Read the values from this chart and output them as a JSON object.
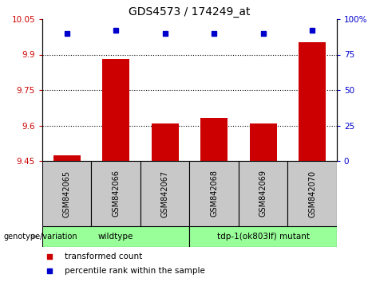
{
  "title": "GDS4573 / 174249_at",
  "samples": [
    "GSM842065",
    "GSM842066",
    "GSM842067",
    "GSM842068",
    "GSM842069",
    "GSM842070"
  ],
  "bar_values": [
    9.473,
    9.883,
    9.608,
    9.633,
    9.608,
    9.953
  ],
  "percentile_values": [
    90,
    92,
    90,
    90,
    90,
    92
  ],
  "ylim_left": [
    9.45,
    10.05
  ],
  "ylim_right": [
    0,
    100
  ],
  "yticks_left": [
    9.45,
    9.6,
    9.75,
    9.9,
    10.05
  ],
  "yticks_right": [
    0,
    25,
    50,
    75,
    100
  ],
  "ytick_labels_left": [
    "9.45",
    "9.6",
    "9.75",
    "9.9",
    "10.05"
  ],
  "ytick_labels_right": [
    "0",
    "25",
    "50",
    "75",
    "100%"
  ],
  "hline_values": [
    9.6,
    9.75,
    9.9
  ],
  "bar_color": "#cc0000",
  "dot_color": "#0000cc",
  "bar_width": 0.55,
  "group_labels": [
    "wildtype",
    "tdp-1(ok803lf) mutant"
  ],
  "group_ranges": [
    [
      -0.5,
      2.5
    ],
    [
      2.5,
      5.5
    ]
  ],
  "group_color": "#99ff99",
  "genotype_label": "genotype/variation",
  "legend_items": [
    {
      "color": "#cc0000",
      "label": "transformed count"
    },
    {
      "color": "#0000cc",
      "label": "percentile rank within the sample"
    }
  ],
  "tick_color_left": "#cc0000",
  "tick_color_right": "#0000cc",
  "sample_box_color": "#c8c8c8"
}
